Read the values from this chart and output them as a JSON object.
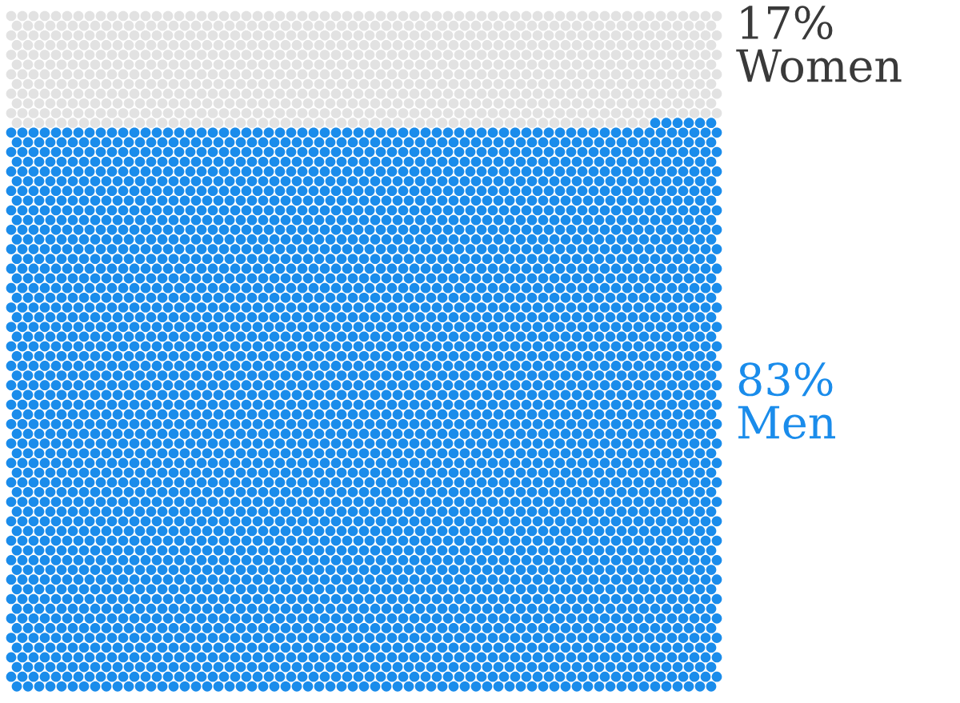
{
  "chart_data": {
    "type": "other",
    "categories": [
      "Women",
      "Men"
    ],
    "values": [
      17,
      83
    ],
    "colors": [
      "#e2e2e2",
      "#1a8ceb"
    ],
    "value_labels": [
      "17%",
      "83%"
    ]
  }
}
